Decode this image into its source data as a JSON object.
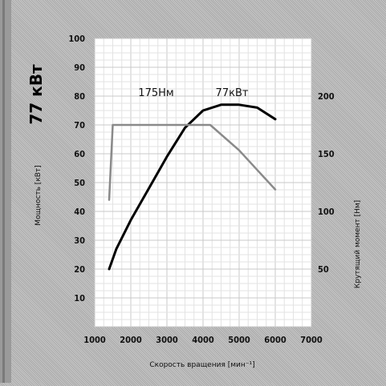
{
  "chart_data": {
    "type": "line",
    "title": "77 кВт",
    "xlabel": "Скорость вращения [мин⁻¹]",
    "ylabel_left": "Мощность [кВт]",
    "ylabel_right": "Крутящий момент [Нм]",
    "xlim": [
      1000,
      7000
    ],
    "ylim_left": [
      0,
      100
    ],
    "ylim_right": [
      0,
      250
    ],
    "x_ticks": [
      1000,
      2000,
      3000,
      4000,
      5000,
      6000,
      7000
    ],
    "x_tick_labels": [
      "1000",
      "2000",
      "3000",
      "4000",
      "5000",
      "6000",
      "7000"
    ],
    "y_left_ticks": [
      10,
      20,
      30,
      40,
      50,
      60,
      70,
      80,
      90,
      100
    ],
    "y_right_ticks": [
      50,
      100,
      150,
      200
    ],
    "grid": true,
    "series": [
      {
        "name": "77кВт",
        "axis": "left",
        "color": "#000000",
        "x": [
          1400,
          1600,
          2000,
          2500,
          3000,
          3500,
          4000,
          4500,
          5000,
          5500,
          6000
        ],
        "y": [
          20,
          27,
          37,
          48,
          59,
          69,
          75,
          77,
          77,
          76,
          72
        ]
      },
      {
        "name": "175Нм",
        "axis": "right",
        "color": "#8a8a8a",
        "x": [
          1400,
          1500,
          1700,
          2000,
          3000,
          4000,
          4200,
          5000,
          5500,
          6000
        ],
        "y": [
          110,
          175,
          175,
          175,
          175,
          175,
          175,
          153,
          136,
          119
        ]
      }
    ],
    "annotations": [
      {
        "text": "77кВт",
        "x": 4800,
        "y": 80,
        "axis": "left"
      },
      {
        "text": "175Нм",
        "x": 2700,
        "y": 200,
        "axis": "right"
      }
    ]
  }
}
